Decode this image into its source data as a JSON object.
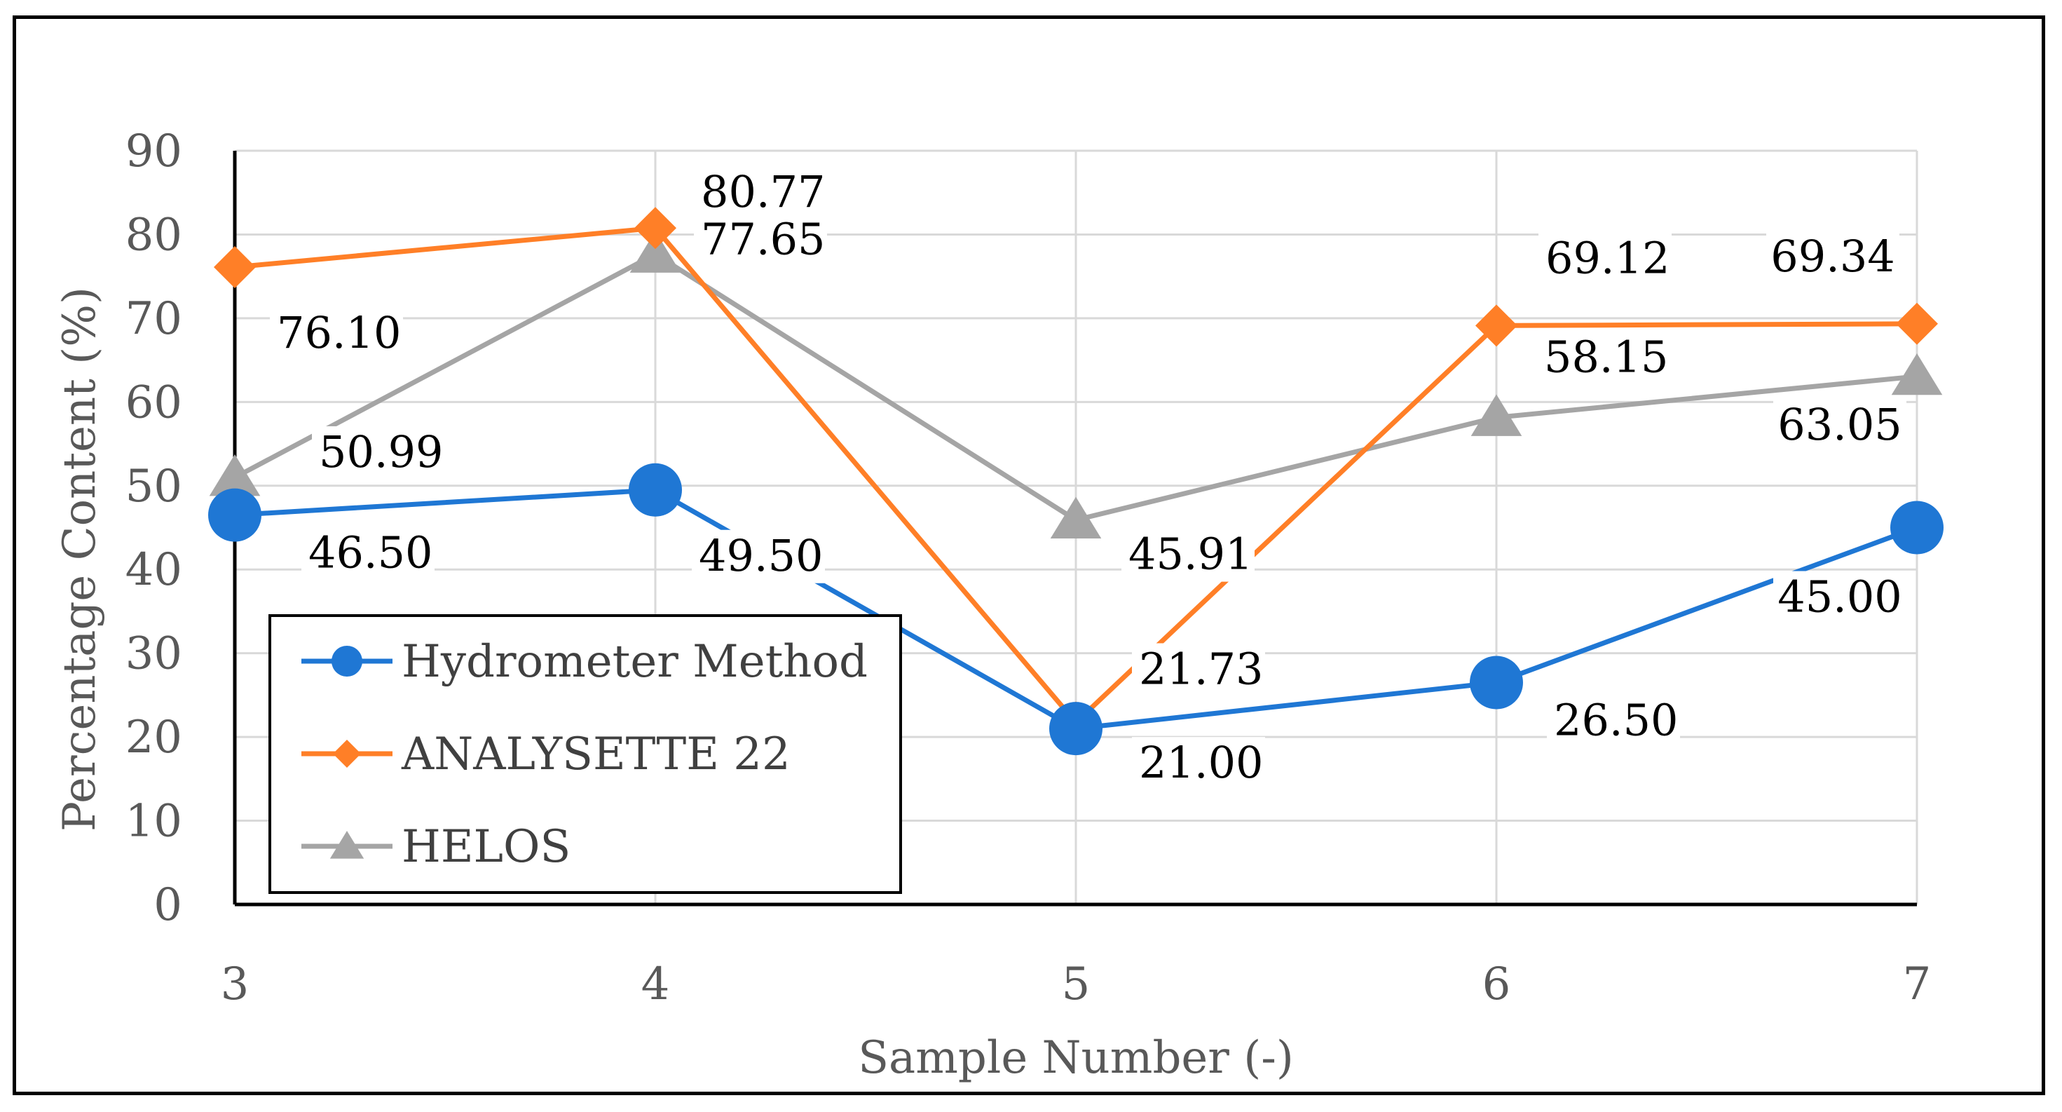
{
  "chart_data": {
    "type": "line",
    "title": "",
    "xlabel": "Sample Number (-)",
    "ylabel": "Percentage Content (%)",
    "categories": [
      "3",
      "4",
      "5",
      "6",
      "7"
    ],
    "ylim": [
      0,
      90
    ],
    "yticks": [
      0,
      10,
      20,
      30,
      40,
      50,
      60,
      70,
      80,
      90
    ],
    "grid": true,
    "legend_position": "bottom-left",
    "series": [
      {
        "name": "Hydrometer Method",
        "color": "#1f77d4",
        "marker": "circle",
        "values": [
          46.5,
          49.5,
          21.0,
          26.5,
          45.0
        ],
        "labels": [
          "46.50",
          "49.50",
          "21.00",
          "26.50",
          "45.00"
        ]
      },
      {
        "name": "ANALYSETTE 22",
        "color": "#ff7f27",
        "marker": "diamond",
        "values": [
          76.1,
          80.77,
          21.73,
          69.12,
          69.34
        ],
        "labels": [
          "76.10",
          "80.77",
          "21.73",
          "69.12",
          "69.34"
        ]
      },
      {
        "name": "HELOS",
        "color": "#a5a5a5",
        "marker": "triangle",
        "values": [
          50.99,
          77.65,
          45.91,
          58.15,
          63.05
        ],
        "labels": [
          "50.99",
          "77.65",
          "45.91",
          "58.15",
          "63.05"
        ]
      }
    ]
  }
}
